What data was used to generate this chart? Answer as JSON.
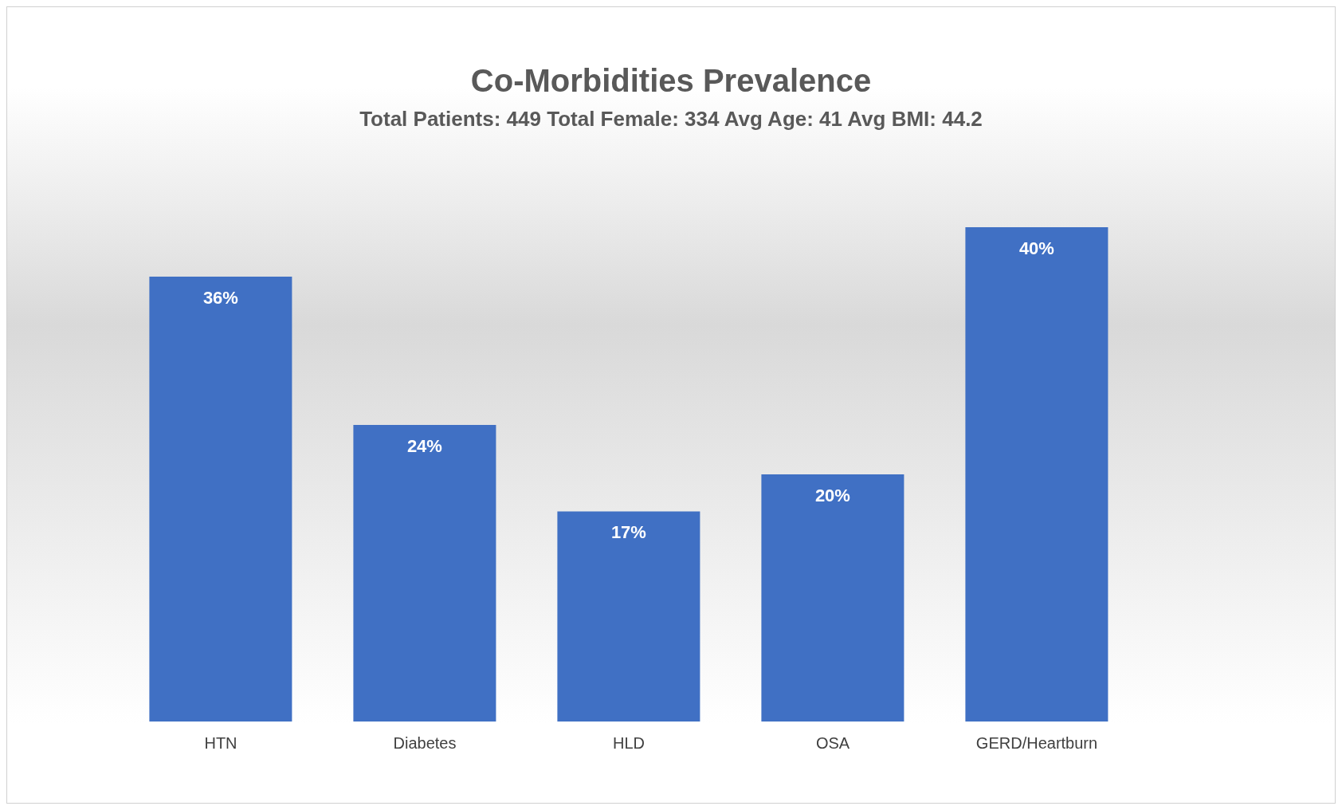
{
  "chart_data": {
    "type": "bar",
    "title": "Co-Morbidities Prevalence",
    "subtitle": "Total Patients: 449 Total Female: 334 Avg Age: 41 Avg BMI: 44.2",
    "categories": [
      "HTN",
      "Diabetes",
      "HLD",
      "OSA",
      "GERD/Heartburn"
    ],
    "values": [
      36,
      24,
      17,
      20,
      40
    ],
    "value_labels": [
      "36%",
      "24%",
      "17%",
      "20%",
      "40%"
    ],
    "color": "#4070c4",
    "grid": false,
    "legend": false
  }
}
